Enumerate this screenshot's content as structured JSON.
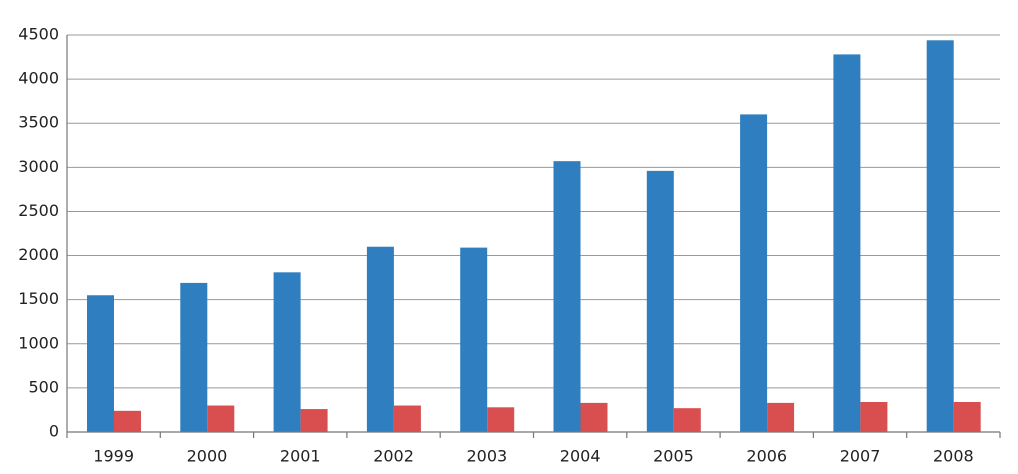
{
  "chart_data": {
    "type": "bar",
    "categories": [
      "1999",
      "2000",
      "2001",
      "2002",
      "2003",
      "2004",
      "2005",
      "2006",
      "2007",
      "2008"
    ],
    "series": [
      {
        "color": "#2f7ebf",
        "values": [
          1550,
          1690,
          1810,
          2100,
          2090,
          3070,
          2960,
          3600,
          4280,
          4440
        ]
      },
      {
        "color": "#d94f4f",
        "values": [
          240,
          300,
          260,
          300,
          280,
          330,
          270,
          330,
          340,
          340
        ]
      }
    ],
    "ylim": [
      0,
      4500
    ],
    "yticks": [
      0,
      500,
      1000,
      1500,
      2000,
      2500,
      3000,
      3500,
      4000,
      4500
    ],
    "grid": true
  }
}
